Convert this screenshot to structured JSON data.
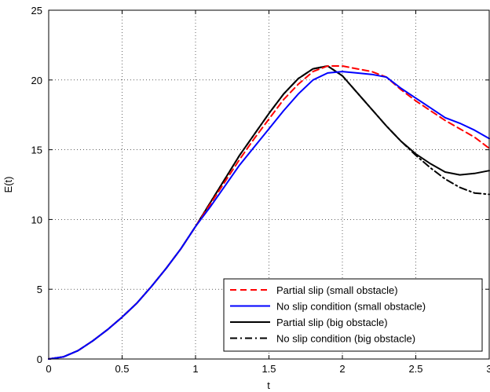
{
  "chart_data": {
    "type": "line",
    "xlabel": "t",
    "ylabel": "E(t)",
    "xlim": [
      0,
      3
    ],
    "ylim": [
      0,
      25
    ],
    "xticks": [
      0,
      0.5,
      1,
      1.5,
      2,
      2.5,
      3
    ],
    "yticks": [
      0,
      5,
      10,
      15,
      20,
      25
    ],
    "xtick_labels": [
      "0",
      "0.5",
      "1",
      "1.5",
      "2",
      "2.5",
      "3"
    ],
    "ytick_labels": [
      "0",
      "5",
      "10",
      "15",
      "20",
      "25"
    ],
    "grid": true,
    "legend_position": "bottom-right",
    "series": [
      {
        "name": "Partial slip (small obstacle)",
        "color": "#ff0000",
        "style": "dashed",
        "x": [
          0,
          0.1,
          0.2,
          0.3,
          0.4,
          0.5,
          0.6,
          0.7,
          0.8,
          0.9,
          1.0,
          1.1,
          1.2,
          1.3,
          1.4,
          1.5,
          1.6,
          1.7,
          1.8,
          1.9,
          2.0,
          2.1,
          2.2,
          2.3,
          2.4,
          2.5,
          2.6,
          2.7,
          2.8,
          2.9,
          3.0
        ],
        "y": [
          0,
          0.15,
          0.6,
          1.3,
          2.1,
          3.0,
          4.0,
          5.2,
          6.5,
          7.9,
          9.5,
          11.1,
          12.7,
          14.3,
          15.8,
          17.2,
          18.6,
          19.7,
          20.6,
          21.0,
          21.0,
          20.8,
          20.6,
          20.2,
          19.3,
          18.5,
          17.8,
          17.1,
          16.5,
          15.9,
          15.1
        ]
      },
      {
        "name": "No slip condition (small obstacle)",
        "color": "#0000ff",
        "style": "solid",
        "x": [
          0,
          0.1,
          0.2,
          0.3,
          0.4,
          0.5,
          0.6,
          0.7,
          0.8,
          0.9,
          1.0,
          1.1,
          1.2,
          1.3,
          1.4,
          1.5,
          1.6,
          1.7,
          1.8,
          1.9,
          2.0,
          2.1,
          2.2,
          2.3,
          2.4,
          2.5,
          2.6,
          2.7,
          2.8,
          2.9,
          3.0
        ],
        "y": [
          0,
          0.15,
          0.6,
          1.3,
          2.1,
          3.0,
          4.0,
          5.2,
          6.5,
          7.9,
          9.5,
          10.9,
          12.4,
          13.9,
          15.2,
          16.5,
          17.8,
          19.0,
          20.0,
          20.5,
          20.6,
          20.5,
          20.4,
          20.2,
          19.4,
          18.7,
          18.0,
          17.3,
          16.9,
          16.4,
          15.8
        ]
      },
      {
        "name": "Partial slip (big obstacle)",
        "color": "#000000",
        "style": "solid",
        "x": [
          0,
          0.1,
          0.2,
          0.3,
          0.4,
          0.5,
          0.6,
          0.7,
          0.8,
          0.9,
          1.0,
          1.1,
          1.2,
          1.3,
          1.4,
          1.5,
          1.6,
          1.7,
          1.8,
          1.9,
          2.0,
          2.1,
          2.2,
          2.3,
          2.4,
          2.5,
          2.6,
          2.7,
          2.8,
          2.9,
          3.0
        ],
        "y": [
          0,
          0.15,
          0.6,
          1.3,
          2.1,
          3.0,
          4.0,
          5.2,
          6.5,
          7.9,
          9.5,
          11.2,
          12.9,
          14.6,
          16.1,
          17.6,
          19.0,
          20.1,
          20.8,
          21.0,
          20.3,
          19.1,
          17.9,
          16.7,
          15.6,
          14.7,
          14.0,
          13.4,
          13.2,
          13.3,
          13.5
        ]
      },
      {
        "name": "No slip condition (big obstacle)",
        "color": "#000000",
        "style": "dashdot",
        "x": [
          0,
          0.1,
          0.2,
          0.3,
          0.4,
          0.5,
          0.6,
          0.7,
          0.8,
          0.9,
          1.0,
          1.1,
          1.2,
          1.3,
          1.4,
          1.5,
          1.6,
          1.7,
          1.8,
          1.9,
          2.0,
          2.1,
          2.2,
          2.3,
          2.4,
          2.5,
          2.6,
          2.7,
          2.8,
          2.9,
          3.0
        ],
        "y": [
          0,
          0.15,
          0.6,
          1.3,
          2.1,
          3.0,
          4.0,
          5.2,
          6.5,
          7.9,
          9.5,
          11.2,
          12.9,
          14.6,
          16.1,
          17.6,
          19.0,
          20.1,
          20.8,
          21.0,
          20.3,
          19.1,
          17.9,
          16.7,
          15.6,
          14.6,
          13.7,
          12.9,
          12.3,
          11.9,
          11.8
        ]
      }
    ]
  }
}
